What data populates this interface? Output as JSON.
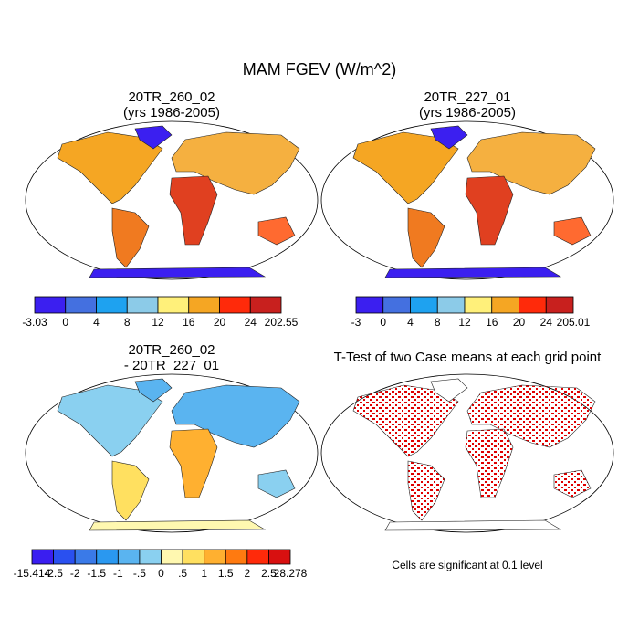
{
  "title": "MAM FGEV (W/m^2)",
  "panels": [
    {
      "title": [
        "20TR_260_02",
        "(yrs 1986-2005)"
      ],
      "colorbar": {
        "colors": [
          "#3b1ff0",
          "#4470e0",
          "#1ea2f0",
          "#8ccbe8",
          "#fff07a",
          "#f5a623",
          "#ff2a0a",
          "#c8201e"
        ],
        "labels": [
          "-3.03",
          "0",
          "4",
          "8",
          "12",
          "16",
          "20",
          "24",
          "202.55"
        ]
      }
    },
    {
      "title": [
        "20TR_227_01",
        "(yrs 1986-2005)"
      ],
      "colorbar": {
        "colors": [
          "#3b1ff0",
          "#4470e0",
          "#1ea2f0",
          "#8ccbe8",
          "#fff07a",
          "#f5a623",
          "#ff2a0a",
          "#c8201e"
        ],
        "labels": [
          "-3",
          "0",
          "4",
          "8",
          "12",
          "16",
          "20",
          "24",
          "205.01"
        ]
      }
    },
    {
      "title": [
        "20TR_260_02",
        "- 20TR_227_01"
      ],
      "colorbar": {
        "colors": [
          "#3a1ef0",
          "#2a50f0",
          "#3a7ae8",
          "#2a98f0",
          "#5ab4f0",
          "#8ad0f0",
          "#fff8b0",
          "#ffe060",
          "#ffb030",
          "#ff7a10",
          "#ff2a0a",
          "#d81010"
        ],
        "labels": [
          "-15.414",
          "-2.5",
          "-2",
          "-1.5",
          "-1",
          "-.5",
          "0",
          ".5",
          "1",
          "1.5",
          "2",
          "2.5",
          "28.278"
        ]
      }
    },
    {
      "title": [
        "T-Test of two Case means at each grid point"
      ],
      "note": "Cells are significant at 0.1 level"
    }
  ]
}
